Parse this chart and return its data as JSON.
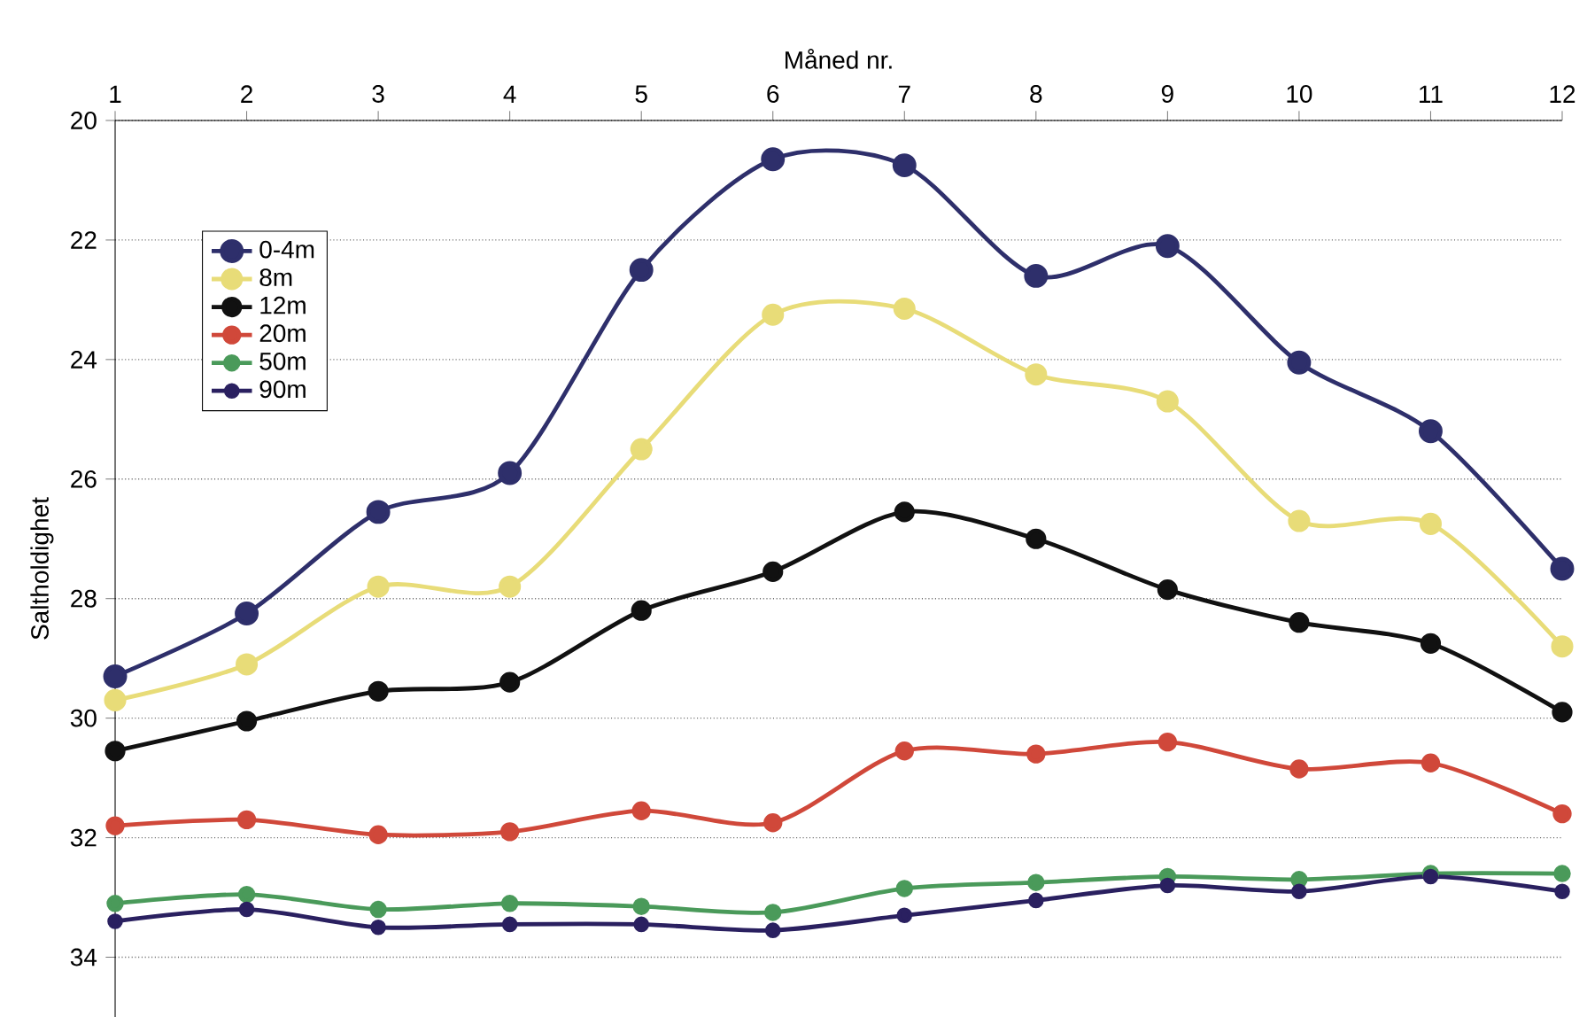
{
  "chart_data": {
    "type": "line",
    "xlabel": "Måned nr.",
    "ylabel": "Saltholdighet",
    "x": [
      1,
      2,
      3,
      4,
      5,
      6,
      7,
      8,
      9,
      10,
      11,
      12
    ],
    "xlim": [
      1,
      12
    ],
    "xticks": [
      1,
      2,
      3,
      4,
      5,
      6,
      7,
      8,
      9,
      10,
      11,
      12
    ],
    "ylim": [
      35,
      20
    ],
    "yticks": [
      20,
      22,
      24,
      26,
      28,
      30,
      32,
      34
    ],
    "grid": "y",
    "legend": "top left",
    "marker": "circle",
    "line_style": "solid",
    "series": [
      {
        "name": "0-4m",
        "color": "#2e2f6b",
        "values": [
          29.3,
          28.25,
          26.55,
          25.9,
          22.5,
          20.65,
          20.75,
          22.6,
          22.1,
          24.05,
          25.2,
          27.5
        ]
      },
      {
        "name": "8m",
        "color": "#e8dc78",
        "values": [
          29.7,
          29.1,
          27.8,
          27.8,
          25.5,
          23.25,
          23.15,
          24.25,
          24.7,
          26.7,
          26.75,
          28.8
        ]
      },
      {
        "name": "12m",
        "color": "#111111",
        "values": [
          30.55,
          30.05,
          29.55,
          29.4,
          28.2,
          27.55,
          26.55,
          27.0,
          27.85,
          28.4,
          28.75,
          29.9
        ]
      },
      {
        "name": "20m",
        "color": "#d0483a",
        "values": [
          31.8,
          31.7,
          31.95,
          31.9,
          31.55,
          31.75,
          30.55,
          30.6,
          30.4,
          30.85,
          30.75,
          31.6
        ]
      },
      {
        "name": "50m",
        "color": "#4a9a5a",
        "values": [
          33.1,
          32.95,
          33.2,
          33.1,
          33.15,
          33.25,
          32.85,
          32.75,
          32.65,
          32.7,
          32.6,
          32.6
        ]
      },
      {
        "name": "90m",
        "color": "#2a2060",
        "values": [
          33.4,
          33.2,
          33.5,
          33.45,
          33.45,
          33.55,
          33.3,
          33.05,
          32.8,
          32.9,
          32.65,
          32.9
        ]
      }
    ]
  }
}
